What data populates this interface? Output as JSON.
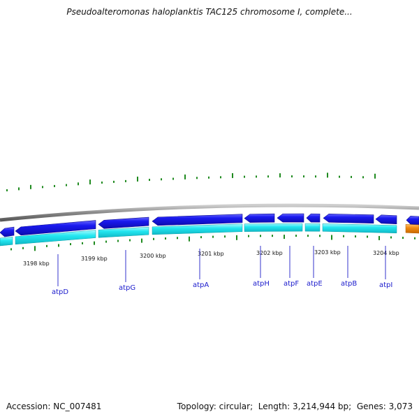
{
  "header": {
    "title": "Pseudoalteromonas haloplanktis TAC125 chromosome I, complete..."
  },
  "footer": {
    "accession_label": "Accession:",
    "accession": "NC_007481",
    "topology_label": "Topology:",
    "topology": "circular",
    "length_label": "Length:",
    "length": "3,214,944 bp",
    "genes_label": "Genes:",
    "genes": "3,073"
  },
  "colors": {
    "backbone": "#8a8a8a",
    "forward_gene": "#1a1adf",
    "reverse_track": "#22e6f0",
    "other_gene": "#f08a10",
    "gc_tick": "#1f8a1f",
    "gene_label": "#1a1acc",
    "connector": "#3333cc"
  },
  "scale_labels": [
    "3198 kbp",
    "3199 kbp",
    "3200 kbp",
    "3201 kbp",
    "3202 kbp",
    "3203 kbp",
    "3204 kbp"
  ],
  "gene_labels": [
    "atpD",
    "atpG",
    "atpA",
    "atpH",
    "atpF",
    "atpE",
    "atpB",
    "atpI"
  ]
}
